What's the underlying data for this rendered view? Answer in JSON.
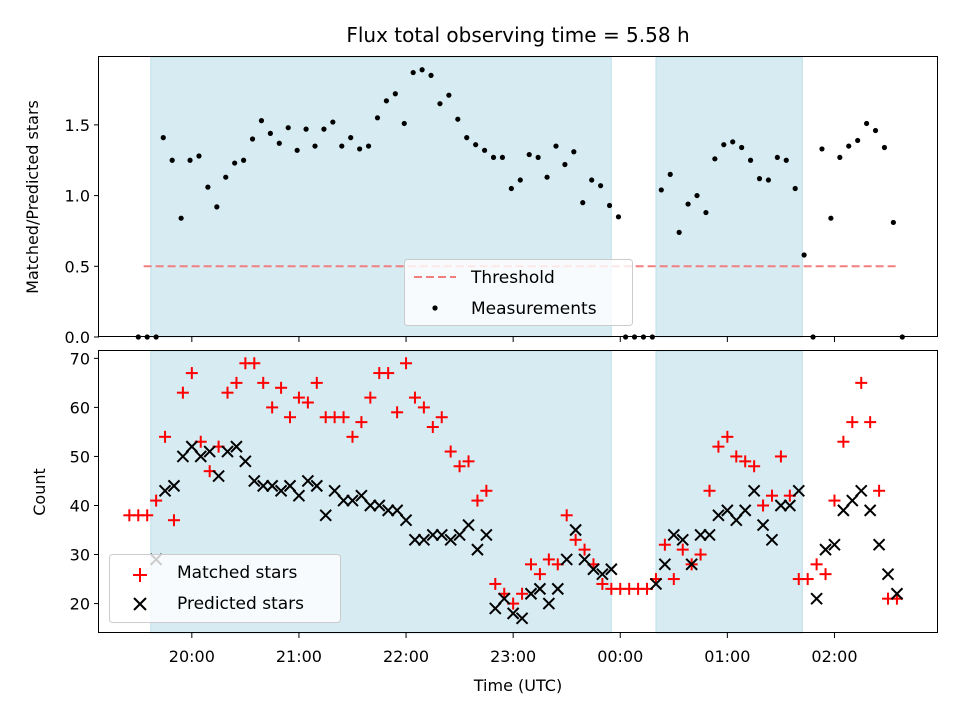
{
  "chart_data": [
    {
      "type": "scatter",
      "title": "Flux total observing time = 5.58 h",
      "xlabel": "",
      "ylabel": "Matched/Predicted stars",
      "ylim": [
        0,
        1.98
      ],
      "yticks": [
        "0.0",
        "0.5",
        "1.0",
        "1.5"
      ],
      "xlim": [
        "2023-01-01 19:08",
        "2023-01-02 02:58"
      ],
      "xticks": [
        "20:00",
        "21:00",
        "22:00",
        "23:00",
        "00:00",
        "01:00",
        "02:00"
      ],
      "shaded_intervals": [
        [
          "19:37",
          "23:55"
        ],
        [
          "00:20",
          "01:42"
        ]
      ],
      "threshold": {
        "value": 0.5,
        "x_range": [
          "19:33",
          "02:35"
        ],
        "color": "#f08080"
      },
      "legend": {
        "placement": "lower-center",
        "entries": [
          "Threshold",
          "Measurements"
        ]
      },
      "series": [
        {
          "name": "Measurements",
          "color": "#000000",
          "marker": "dot",
          "points": [
            [
              "19:30",
              0
            ],
            [
              "19:35",
              0
            ],
            [
              "19:40",
              0
            ],
            [
              "19:44",
              1.41
            ],
            [
              "19:49",
              1.25
            ],
            [
              "19:54",
              0.84
            ],
            [
              "19:59",
              1.25
            ],
            [
              "20:04",
              1.28
            ],
            [
              "20:09",
              1.06
            ],
            [
              "20:14",
              0.92
            ],
            [
              "20:19",
              1.13
            ],
            [
              "20:24",
              1.23
            ],
            [
              "20:29",
              1.25
            ],
            [
              "20:34",
              1.4
            ],
            [
              "20:39",
              1.53
            ],
            [
              "20:44",
              1.44
            ],
            [
              "20:49",
              1.37
            ],
            [
              "20:54",
              1.48
            ],
            [
              "20:59",
              1.32
            ],
            [
              "21:04",
              1.47
            ],
            [
              "21:09",
              1.35
            ],
            [
              "21:14",
              1.47
            ],
            [
              "21:19",
              1.52
            ],
            [
              "21:24",
              1.35
            ],
            [
              "21:29",
              1.41
            ],
            [
              "21:34",
              1.33
            ],
            [
              "21:39",
              1.35
            ],
            [
              "21:44",
              1.55
            ],
            [
              "21:49",
              1.67
            ],
            [
              "21:54",
              1.72
            ],
            [
              "21:59",
              1.51
            ],
            [
              "22:04",
              1.87
            ],
            [
              "22:09",
              1.89
            ],
            [
              "22:14",
              1.85
            ],
            [
              "22:19",
              1.65
            ],
            [
              "22:24",
              1.71
            ],
            [
              "22:29",
              1.54
            ],
            [
              "22:34",
              1.41
            ],
            [
              "22:39",
              1.36
            ],
            [
              "22:44",
              1.32
            ],
            [
              "22:49",
              1.27
            ],
            [
              "22:54",
              1.27
            ],
            [
              "22:59",
              1.05
            ],
            [
              "23:04",
              1.11
            ],
            [
              "23:09",
              1.29
            ],
            [
              "23:14",
              1.27
            ],
            [
              "23:19",
              1.13
            ],
            [
              "23:24",
              1.35
            ],
            [
              "23:29",
              1.22
            ],
            [
              "23:34",
              1.31
            ],
            [
              "23:39",
              0.95
            ],
            [
              "23:44",
              1.11
            ],
            [
              "23:49",
              1.07
            ],
            [
              "23:54",
              0.93
            ],
            [
              "23:59",
              0.85
            ],
            [
              "00:03",
              0
            ],
            [
              "00:08",
              0
            ],
            [
              "00:13",
              0
            ],
            [
              "00:18",
              0
            ],
            [
              "00:23",
              1.04
            ],
            [
              "00:28",
              1.15
            ],
            [
              "00:33",
              0.74
            ],
            [
              "00:38",
              0.94
            ],
            [
              "00:43",
              1.0
            ],
            [
              "00:48",
              0.88
            ],
            [
              "00:53",
              1.26
            ],
            [
              "00:58",
              1.36
            ],
            [
              "01:03",
              1.38
            ],
            [
              "01:08",
              1.34
            ],
            [
              "01:13",
              1.25
            ],
            [
              "01:18",
              1.12
            ],
            [
              "01:23",
              1.11
            ],
            [
              "01:28",
              1.27
            ],
            [
              "01:33",
              1.25
            ],
            [
              "01:38",
              1.05
            ],
            [
              "01:43",
              0.58
            ],
            [
              "01:48",
              0
            ],
            [
              "01:53",
              1.33
            ],
            [
              "01:58",
              0.84
            ],
            [
              "02:03",
              1.27
            ],
            [
              "02:08",
              1.35
            ],
            [
              "02:13",
              1.39
            ],
            [
              "02:18",
              1.51
            ],
            [
              "02:23",
              1.46
            ],
            [
              "02:28",
              1.34
            ],
            [
              "02:33",
              0.81
            ],
            [
              "02:38",
              0
            ]
          ]
        }
      ]
    },
    {
      "type": "scatter",
      "title": "",
      "xlabel": "Time (UTC)",
      "ylabel": "Count",
      "ylim": [
        14,
        71.5
      ],
      "yticks": [
        "20",
        "30",
        "40",
        "50",
        "60",
        "70"
      ],
      "xlim": [
        "2023-01-01 19:08",
        "2023-01-02 02:58"
      ],
      "xticks": [
        "20:00",
        "21:00",
        "22:00",
        "23:00",
        "00:00",
        "01:00",
        "02:00"
      ],
      "shaded_intervals": [
        [
          "19:37",
          "23:55"
        ],
        [
          "00:20",
          "01:42"
        ]
      ],
      "legend": {
        "placement": "lower-left",
        "entries": [
          "Matched stars",
          "Predicted stars"
        ]
      },
      "series": [
        {
          "name": "Matched stars",
          "color": "#ff0000",
          "marker": "plus",
          "points": [
            [
              "19:25",
              38
            ],
            [
              "19:30",
              38
            ],
            [
              "19:35",
              38
            ],
            [
              "19:40",
              41
            ],
            [
              "19:45",
              54
            ],
            [
              "19:50",
              37
            ],
            [
              "19:55",
              63
            ],
            [
              "20:00",
              67
            ],
            [
              "20:05",
              53
            ],
            [
              "20:10",
              47
            ],
            [
              "20:15",
              52
            ],
            [
              "20:20",
              63
            ],
            [
              "20:25",
              65
            ],
            [
              "20:30",
              69
            ],
            [
              "20:35",
              69
            ],
            [
              "20:40",
              65
            ],
            [
              "20:45",
              60
            ],
            [
              "20:50",
              64
            ],
            [
              "20:55",
              58
            ],
            [
              "21:00",
              62
            ],
            [
              "21:05",
              61
            ],
            [
              "21:10",
              65
            ],
            [
              "21:15",
              58
            ],
            [
              "21:20",
              58
            ],
            [
              "21:25",
              58
            ],
            [
              "21:30",
              54
            ],
            [
              "21:35",
              57
            ],
            [
              "21:40",
              62
            ],
            [
              "21:45",
              67
            ],
            [
              "21:50",
              67
            ],
            [
              "21:55",
              59
            ],
            [
              "22:00",
              69
            ],
            [
              "22:05",
              62
            ],
            [
              "22:10",
              60
            ],
            [
              "22:15",
              56
            ],
            [
              "22:20",
              58
            ],
            [
              "22:25",
              51
            ],
            [
              "22:30",
              48
            ],
            [
              "22:35",
              49
            ],
            [
              "22:40",
              41
            ],
            [
              "22:45",
              43
            ],
            [
              "22:50",
              24
            ],
            [
              "22:55",
              22
            ],
            [
              "23:00",
              20
            ],
            [
              "23:05",
              22
            ],
            [
              "23:10",
              28
            ],
            [
              "23:15",
              26
            ],
            [
              "23:20",
              29
            ],
            [
              "23:25",
              28
            ],
            [
              "23:30",
              38
            ],
            [
              "23:35",
              33
            ],
            [
              "23:40",
              31
            ],
            [
              "23:45",
              28
            ],
            [
              "23:50",
              24
            ],
            [
              "23:55",
              23
            ],
            [
              "00:00",
              23
            ],
            [
              "00:05",
              23
            ],
            [
              "00:10",
              23
            ],
            [
              "00:15",
              23
            ],
            [
              "00:20",
              25
            ],
            [
              "00:25",
              32
            ],
            [
              "00:30",
              25
            ],
            [
              "00:35",
              31
            ],
            [
              "00:40",
              28
            ],
            [
              "00:45",
              30
            ],
            [
              "00:50",
              43
            ],
            [
              "00:55",
              52
            ],
            [
              "01:00",
              54
            ],
            [
              "01:05",
              50
            ],
            [
              "01:10",
              49
            ],
            [
              "01:15",
              48
            ],
            [
              "01:20",
              40
            ],
            [
              "01:25",
              42
            ],
            [
              "01:30",
              50
            ],
            [
              "01:35",
              42
            ],
            [
              "01:40",
              25
            ],
            [
              "01:45",
              25
            ],
            [
              "01:50",
              28
            ],
            [
              "01:55",
              26
            ],
            [
              "02:00",
              41
            ],
            [
              "02:05",
              53
            ],
            [
              "02:10",
              57
            ],
            [
              "02:15",
              65
            ],
            [
              "02:20",
              57
            ],
            [
              "02:25",
              43
            ],
            [
              "02:30",
              21
            ],
            [
              "02:35",
              21
            ]
          ]
        },
        {
          "name": "Predicted stars",
          "color": "#000000",
          "marker": "x",
          "points": [
            [
              "19:40",
              29
            ],
            [
              "19:45",
              43
            ],
            [
              "19:50",
              44
            ],
            [
              "19:55",
              50
            ],
            [
              "20:00",
              52
            ],
            [
              "20:05",
              50
            ],
            [
              "20:10",
              51
            ],
            [
              "20:15",
              46
            ],
            [
              "20:20",
              51
            ],
            [
              "20:25",
              52
            ],
            [
              "20:30",
              49
            ],
            [
              "20:35",
              45
            ],
            [
              "20:40",
              44
            ],
            [
              "20:45",
              44
            ],
            [
              "20:50",
              43
            ],
            [
              "20:55",
              44
            ],
            [
              "21:00",
              42
            ],
            [
              "21:05",
              45
            ],
            [
              "21:10",
              44
            ],
            [
              "21:15",
              38
            ],
            [
              "21:20",
              43
            ],
            [
              "21:25",
              41
            ],
            [
              "21:30",
              41
            ],
            [
              "21:35",
              42
            ],
            [
              "21:40",
              40
            ],
            [
              "21:45",
              40
            ],
            [
              "21:50",
              39
            ],
            [
              "21:55",
              39
            ],
            [
              "22:00",
              37
            ],
            [
              "22:05",
              33
            ],
            [
              "22:10",
              33
            ],
            [
              "22:15",
              34
            ],
            [
              "22:20",
              34
            ],
            [
              "22:25",
              33
            ],
            [
              "22:30",
              34
            ],
            [
              "22:35",
              36
            ],
            [
              "22:40",
              31
            ],
            [
              "22:45",
              34
            ],
            [
              "22:50",
              19
            ],
            [
              "22:55",
              21
            ],
            [
              "23:00",
              18
            ],
            [
              "23:05",
              17
            ],
            [
              "23:10",
              22
            ],
            [
              "23:15",
              23
            ],
            [
              "23:20",
              20
            ],
            [
              "23:25",
              23
            ],
            [
              "23:30",
              29
            ],
            [
              "23:35",
              35
            ],
            [
              "23:40",
              29
            ],
            [
              "23:45",
              27
            ],
            [
              "23:50",
              26
            ],
            [
              "23:55",
              27
            ],
            [
              "00:20",
              24
            ],
            [
              "00:25",
              28
            ],
            [
              "00:30",
              34
            ],
            [
              "00:35",
              33
            ],
            [
              "00:40",
              28
            ],
            [
              "00:45",
              34
            ],
            [
              "00:50",
              34
            ],
            [
              "00:55",
              38
            ],
            [
              "01:00",
              39
            ],
            [
              "01:05",
              37
            ],
            [
              "01:10",
              39
            ],
            [
              "01:15",
              43
            ],
            [
              "01:20",
              36
            ],
            [
              "01:25",
              33
            ],
            [
              "01:30",
              40
            ],
            [
              "01:35",
              40
            ],
            [
              "01:40",
              43
            ],
            [
              "01:50",
              21
            ],
            [
              "01:55",
              31
            ],
            [
              "02:00",
              32
            ],
            [
              "02:05",
              39
            ],
            [
              "02:10",
              41
            ],
            [
              "02:15",
              43
            ],
            [
              "02:20",
              39
            ],
            [
              "02:25",
              32
            ],
            [
              "02:30",
              26
            ],
            [
              "02:35",
              22
            ]
          ]
        }
      ]
    }
  ]
}
